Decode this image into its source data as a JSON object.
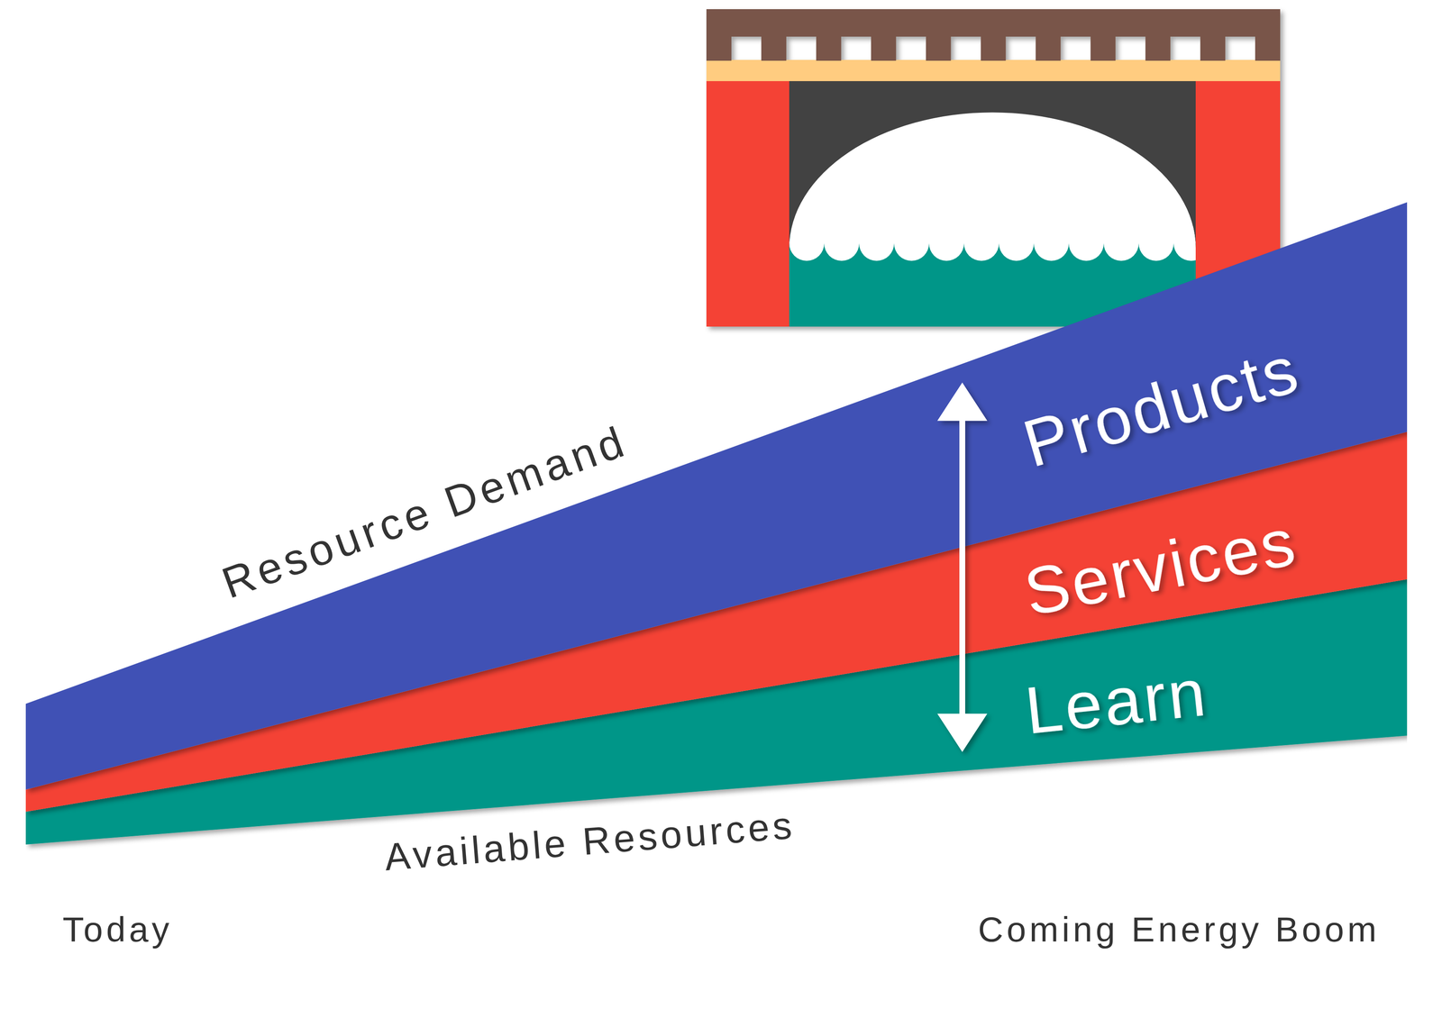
{
  "chart_data": {
    "type": "area",
    "stacked": true,
    "categories": [
      "Today",
      "Coming Energy Boom"
    ],
    "ylim": [
      0,
      100
    ],
    "yticks": [],
    "tick_labels": "x",
    "annotations": [
      "Resource Demand"
    ],
    "series": [
      {
        "name": "Available Resources",
        "color": "#ffffff",
        "values": [
          13.5,
          24.8
        ]
      },
      {
        "name": "Learn",
        "color": "#009688",
        "values": [
          3.4,
          16.2
        ]
      },
      {
        "name": "Services",
        "color": "#f44336",
        "values": [
          2.3,
          15.3
        ]
      },
      {
        "name": "Products",
        "color": "#3f51b5",
        "values": [
          8.9,
          23.8
        ]
      }
    ]
  }
}
